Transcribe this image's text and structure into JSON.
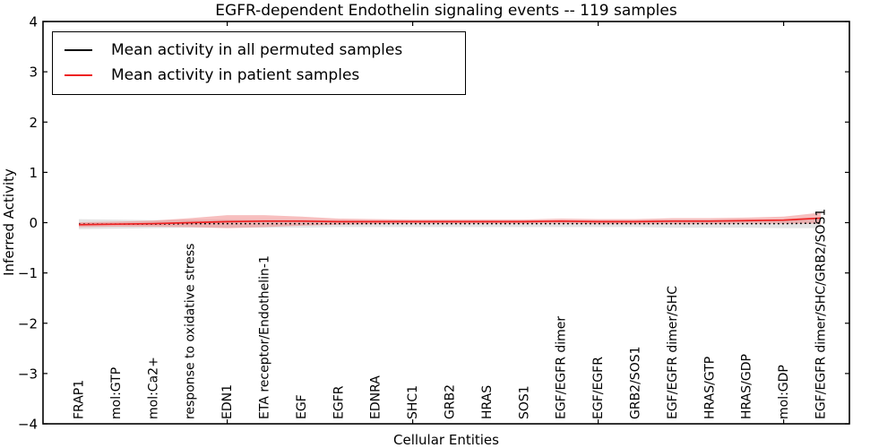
{
  "figure": {
    "title": "EGFR-dependent Endothelin signaling events -- 119 samples"
  },
  "axes": {
    "xlabel": "Cellular Entities",
    "ylabel": "Inferred Activity",
    "ytick_labels": [
      "4",
      "3",
      "2",
      "1",
      "0",
      "−1",
      "−2",
      "−3",
      "−4"
    ]
  },
  "legend": {
    "entries": [
      {
        "label": "Mean activity in all permuted samples",
        "color": "#000000"
      },
      {
        "label": "Mean activity in patient samples",
        "color": "#ee2222"
      }
    ]
  },
  "chart_data": {
    "type": "line",
    "title": "EGFR-dependent Endothelin signaling events -- 119 samples",
    "xlabel": "Cellular Entities",
    "ylabel": "Inferred Activity",
    "ylim": [
      -4,
      4
    ],
    "yticks": [
      4,
      3,
      2,
      1,
      0,
      -1,
      -2,
      -3,
      -4
    ],
    "grid": false,
    "legend_position": "upper left",
    "x_tick_marks_at_category_indices": [
      4,
      9,
      14,
      19
    ],
    "categories": [
      "FRAP1",
      "mol:GTP",
      "mol:Ca2+",
      "response to oxidative stress",
      "EDN1",
      "ETA receptor/Endothelin-1",
      "EGF",
      "EGFR",
      "EDNRA",
      "SHC1",
      "GRB2",
      "HRAS",
      "SOS1",
      "EGF/EGFR dimer",
      "EGF/EGFR",
      "GRB2/SOS1",
      "EGF/EGFR dimer/SHC",
      "HRAS/GTP",
      "HRAS/GDP",
      "mol:GDP",
      "EGF/EGFR dimer/SHC/GRB2/SOS1"
    ],
    "series": [
      {
        "name": "Mean activity in all permuted samples",
        "color": "#000000",
        "line_style": "dotted",
        "values": [
          -0.03,
          -0.03,
          -0.03,
          -0.02,
          -0.02,
          -0.02,
          -0.02,
          -0.02,
          -0.02,
          -0.02,
          -0.02,
          -0.02,
          -0.02,
          -0.02,
          -0.02,
          -0.02,
          -0.02,
          -0.02,
          -0.02,
          -0.02,
          -0.01
        ],
        "band_halfwidth": [
          0.1,
          0.09,
          0.08,
          0.08,
          0.08,
          0.08,
          0.08,
          0.07,
          0.07,
          0.07,
          0.07,
          0.07,
          0.07,
          0.07,
          0.07,
          0.07,
          0.08,
          0.08,
          0.08,
          0.09,
          0.1
        ],
        "band_color": "#d9d9d9"
      },
      {
        "name": "Mean activity in patient samples",
        "color": "#ee2222",
        "line_style": "solid",
        "values": [
          -0.04,
          -0.03,
          -0.02,
          0.0,
          0.02,
          0.03,
          0.03,
          0.02,
          0.02,
          0.02,
          0.02,
          0.02,
          0.02,
          0.03,
          0.02,
          0.02,
          0.03,
          0.03,
          0.04,
          0.05,
          0.09
        ],
        "band_halfwidth": [
          0.05,
          0.05,
          0.06,
          0.09,
          0.13,
          0.12,
          0.09,
          0.06,
          0.05,
          0.04,
          0.04,
          0.04,
          0.04,
          0.05,
          0.05,
          0.05,
          0.06,
          0.06,
          0.06,
          0.07,
          0.11
        ],
        "band_color": "#f08080"
      }
    ]
  }
}
